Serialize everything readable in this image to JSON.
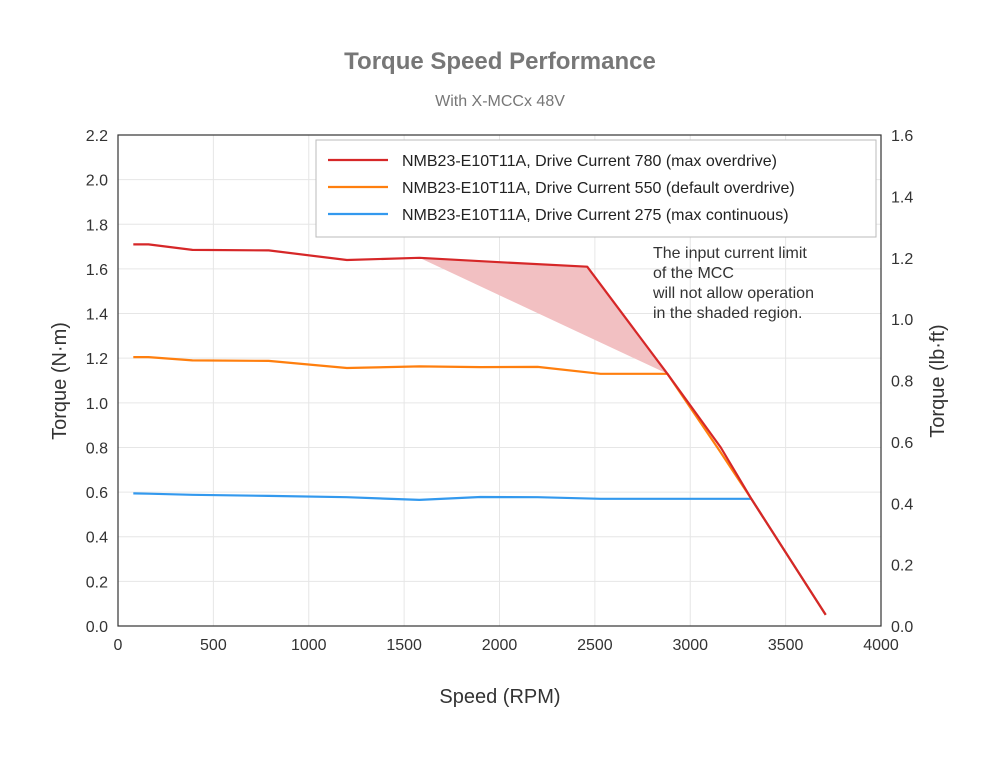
{
  "chart_data": {
    "type": "line",
    "title": "Torque Speed Performance",
    "subtitle": "With X-MCCx 48V",
    "xlabel": "Speed (RPM)",
    "ylabel": "Torque (N·m)",
    "y2label": "Torque (lb·ft)",
    "xlim": [
      0,
      4000
    ],
    "ylim": [
      0,
      2.2
    ],
    "y2lim": [
      0,
      1.6
    ],
    "xticks": [
      "0",
      "500",
      "1000",
      "1500",
      "2000",
      "2500",
      "3000",
      "3500",
      "4000"
    ],
    "yticks": [
      "0.0",
      "0.2",
      "0.4",
      "0.6",
      "0.8",
      "1.0",
      "1.2",
      "1.4",
      "1.6",
      "1.8",
      "2.0",
      "2.2"
    ],
    "y2ticks": [
      "0.0",
      "0.2",
      "0.4",
      "0.6",
      "0.8",
      "1.0",
      "1.2",
      "1.4",
      "1.6"
    ],
    "grid": true,
    "legend_position": "top-right",
    "series": [
      {
        "name": "NMB23-E10T11A, Drive Current 780 (max overdrive)",
        "color": "#d62728",
        "points": [
          [
            80,
            1.71
          ],
          [
            160,
            1.71
          ],
          [
            390,
            1.685
          ],
          [
            790,
            1.683
          ],
          [
            1200,
            1.64
          ],
          [
            1580,
            1.65
          ],
          [
            2000,
            1.63
          ],
          [
            2460,
            1.61
          ],
          [
            2880,
            1.13
          ],
          [
            3160,
            0.8
          ],
          [
            3320,
            0.57
          ],
          [
            3710,
            0.05
          ]
        ]
      },
      {
        "name": "NMB23-E10T11A, Drive Current 550 (default overdrive)",
        "color": "#ff7f0e",
        "points": [
          [
            80,
            1.205
          ],
          [
            160,
            1.205
          ],
          [
            390,
            1.19
          ],
          [
            790,
            1.188
          ],
          [
            1200,
            1.156
          ],
          [
            1580,
            1.163
          ],
          [
            1900,
            1.16
          ],
          [
            2200,
            1.161
          ],
          [
            2530,
            1.13
          ],
          [
            2880,
            1.13
          ],
          [
            3150,
            0.79
          ],
          [
            3320,
            0.57
          ],
          [
            3710,
            0.05
          ]
        ]
      },
      {
        "name": "NMB23-E10T11A, Drive Current 275 (max continuous)",
        "color": "#3399ee",
        "points": [
          [
            80,
            0.594
          ],
          [
            160,
            0.593
          ],
          [
            390,
            0.588
          ],
          [
            790,
            0.583
          ],
          [
            1200,
            0.577
          ],
          [
            1580,
            0.565
          ],
          [
            1900,
            0.578
          ],
          [
            2200,
            0.577
          ],
          [
            2530,
            0.57
          ],
          [
            2880,
            0.57
          ],
          [
            3320,
            0.57
          ],
          [
            3710,
            0.05
          ]
        ]
      }
    ],
    "shaded_region": {
      "color": "#f2c0c2",
      "points": [
        [
          1580,
          1.65
        ],
        [
          2000,
          1.63
        ],
        [
          2460,
          1.61
        ],
        [
          2880,
          1.13
        ]
      ]
    },
    "annotation": {
      "lines": [
        "The input current limit",
        "of the MCC",
        "will not allow operation",
        "in the shaded region."
      ]
    }
  }
}
